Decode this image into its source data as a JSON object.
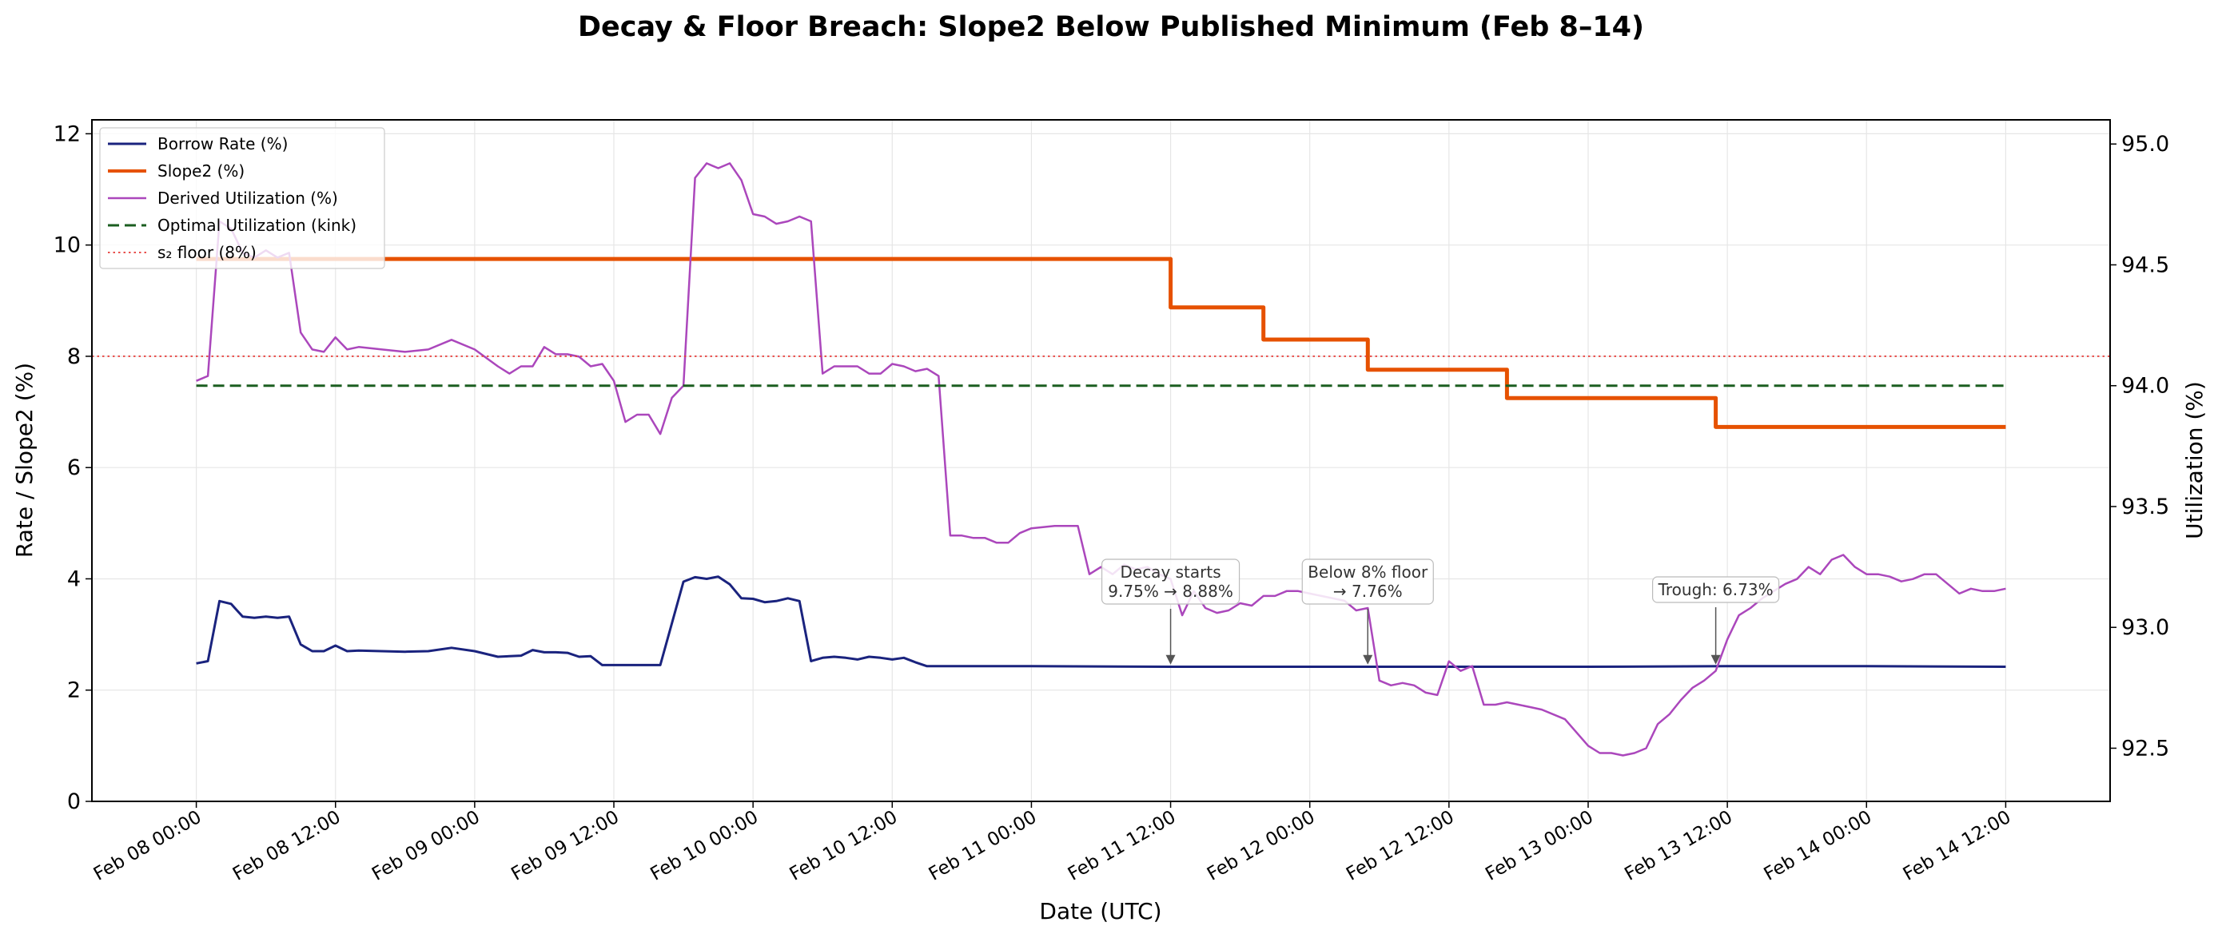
{
  "chart_data": {
    "type": "line",
    "title": "Decay & Floor Breach: Slope2 Below Published Minimum (Feb 8–14)",
    "xlabel": "Date (UTC)",
    "ylabel_left": "Rate / Slope2 (%)",
    "ylabel_right": "Utilization (%)",
    "xlim": [
      "2025-02-07 15:00",
      "2025-02-14 21:00"
    ],
    "ylim_left": [
      0,
      12.25
    ],
    "ylim_right": [
      92.28,
      95.1
    ],
    "xticks": [
      "Feb 08 00:00",
      "Feb 08 12:00",
      "Feb 09 00:00",
      "Feb 09 12:00",
      "Feb 10 00:00",
      "Feb 10 12:00",
      "Feb 11 00:00",
      "Feb 11 12:00",
      "Feb 12 00:00",
      "Feb 12 12:00",
      "Feb 13 00:00",
      "Feb 13 12:00",
      "Feb 14 00:00",
      "Feb 14 12:00"
    ],
    "yticks_left": [
      "0",
      "2",
      "4",
      "6",
      "8",
      "10",
      "12"
    ],
    "yticks_right": [
      "92.5",
      "93.0",
      "93.5",
      "94.0",
      "94.5",
      "95.0"
    ],
    "grid": true,
    "legend_position": "top-left",
    "series": [
      {
        "name": "Borrow Rate (%)",
        "axis": "left",
        "color": "#1a237e",
        "x": [
          "02-08 00:00",
          "02-08 01:00",
          "02-08 02:00",
          "02-08 03:00",
          "02-08 04:00",
          "02-08 05:00",
          "02-08 06:00",
          "02-08 07:00",
          "02-08 08:00",
          "02-08 09:00",
          "02-08 10:00",
          "02-08 11:00",
          "02-08 12:00",
          "02-08 13:00",
          "02-08 14:00",
          "02-08 16:00",
          "02-08 18:00",
          "02-08 20:00",
          "02-08 22:00",
          "02-09 00:00",
          "02-09 02:00",
          "02-09 04:00",
          "02-09 05:00",
          "02-09 06:00",
          "02-09 07:00",
          "02-09 08:00",
          "02-09 09:00",
          "02-09 10:00",
          "02-09 11:00",
          "02-09 12:00",
          "02-09 14:00",
          "02-09 16:00",
          "02-09 18:00",
          "02-09 19:00",
          "02-09 20:00",
          "02-09 21:00",
          "02-09 22:00",
          "02-09 23:00",
          "02-10 00:00",
          "02-10 01:00",
          "02-10 02:00",
          "02-10 03:00",
          "02-10 04:00",
          "02-10 05:00",
          "02-10 06:00",
          "02-10 07:00",
          "02-10 08:00",
          "02-10 09:00",
          "02-10 10:00",
          "02-10 11:00",
          "02-10 12:00",
          "02-10 13:00",
          "02-10 14:00",
          "02-10 15:00",
          "02-10 16:00",
          "02-11 00:00",
          "02-11 12:00",
          "02-12 12:00",
          "02-13 00:00",
          "02-13 12:00",
          "02-14 00:00",
          "02-14 12:00"
        ],
        "y": [
          2.48,
          2.52,
          3.6,
          3.55,
          3.32,
          3.3,
          3.32,
          3.3,
          3.32,
          2.82,
          2.7,
          2.7,
          2.8,
          2.7,
          2.71,
          2.7,
          2.69,
          2.7,
          2.76,
          2.7,
          2.6,
          2.62,
          2.72,
          2.68,
          2.68,
          2.67,
          2.6,
          2.61,
          2.45,
          2.45,
          2.45,
          2.45,
          3.95,
          4.03,
          4.0,
          4.04,
          3.9,
          3.65,
          3.64,
          3.58,
          3.6,
          3.65,
          3.6,
          2.52,
          2.58,
          2.6,
          2.58,
          2.55,
          2.6,
          2.58,
          2.55,
          2.58,
          2.5,
          2.43,
          2.43,
          2.43,
          2.42,
          2.42,
          2.42,
          2.43,
          2.43,
          2.42
        ]
      },
      {
        "name": "Slope2 (%)",
        "axis": "left",
        "color": "#e65100",
        "step": "post",
        "x": [
          "02-08 00:00",
          "02-11 12:00",
          "02-11 20:00",
          "02-12 05:00",
          "02-12 17:00",
          "02-13 11:00",
          "02-14 12:00"
        ],
        "y": [
          9.75,
          8.88,
          8.3,
          7.76,
          7.25,
          6.73,
          6.73
        ]
      },
      {
        "name": "Derived Utilization (%)",
        "axis": "right",
        "color": "#ab47bc",
        "x": [
          "02-08 00:00",
          "02-08 01:00",
          "02-08 02:00",
          "02-08 03:00",
          "02-08 04:00",
          "02-08 05:00",
          "02-08 06:00",
          "02-08 07:00",
          "02-08 08:00",
          "02-08 09:00",
          "02-08 10:00",
          "02-08 11:00",
          "02-08 12:00",
          "02-08 13:00",
          "02-08 14:00",
          "02-08 16:00",
          "02-08 18:00",
          "02-08 20:00",
          "02-08 22:00",
          "02-09 00:00",
          "02-09 02:00",
          "02-09 03:00",
          "02-09 04:00",
          "02-09 05:00",
          "02-09 06:00",
          "02-09 07:00",
          "02-09 08:00",
          "02-09 09:00",
          "02-09 10:00",
          "02-09 11:00",
          "02-09 12:00",
          "02-09 13:00",
          "02-09 14:00",
          "02-09 15:00",
          "02-09 16:00",
          "02-09 17:00",
          "02-09 18:00",
          "02-09 19:00",
          "02-09 20:00",
          "02-09 21:00",
          "02-09 22:00",
          "02-09 23:00",
          "02-10 00:00",
          "02-10 01:00",
          "02-10 02:00",
          "02-10 03:00",
          "02-10 04:00",
          "02-10 05:00",
          "02-10 06:00",
          "02-10 07:00",
          "02-10 08:00",
          "02-10 09:00",
          "02-10 10:00",
          "02-10 11:00",
          "02-10 12:00",
          "02-10 13:00",
          "02-10 14:00",
          "02-10 15:00",
          "02-10 16:00",
          "02-10 17:00",
          "02-10 18:00",
          "02-10 19:00",
          "02-10 20:00",
          "02-10 21:00",
          "02-10 22:00",
          "02-10 23:00",
          "02-11 00:00",
          "02-11 02:00",
          "02-11 04:00",
          "02-11 05:00",
          "02-11 06:00",
          "02-11 07:00",
          "02-11 08:00",
          "02-11 09:00",
          "02-11 10:00",
          "02-11 11:00",
          "02-11 12:00",
          "02-11 13:00",
          "02-11 14:00",
          "02-11 15:00",
          "02-11 16:00",
          "02-11 17:00",
          "02-11 18:00",
          "02-11 19:00",
          "02-11 20:00",
          "02-11 21:00",
          "02-11 22:00",
          "02-11 23:00",
          "02-12 00:00",
          "02-12 01:00",
          "02-12 02:00",
          "02-12 03:00",
          "02-12 04:00",
          "02-12 05:00",
          "02-12 06:00",
          "02-12 07:00",
          "02-12 08:00",
          "02-12 09:00",
          "02-12 10:00",
          "02-12 11:00",
          "02-12 12:00",
          "02-12 13:00",
          "02-12 14:00",
          "02-12 15:00",
          "02-12 16:00",
          "02-12 17:00",
          "02-12 18:00",
          "02-12 19:00",
          "02-12 20:00",
          "02-12 22:00",
          "02-13 00:00",
          "02-13 01:00",
          "02-13 02:00",
          "02-13 03:00",
          "02-13 04:00",
          "02-13 05:00",
          "02-13 06:00",
          "02-13 07:00",
          "02-13 08:00",
          "02-13 09:00",
          "02-13 10:00",
          "02-13 11:00",
          "02-13 12:00",
          "02-13 13:00",
          "02-13 14:00",
          "02-13 15:00",
          "02-13 16:00",
          "02-13 17:00",
          "02-13 18:00",
          "02-13 19:00",
          "02-13 20:00",
          "02-13 21:00",
          "02-13 22:00",
          "02-13 23:00",
          "02-14 00:00",
          "02-14 01:00",
          "02-14 02:00",
          "02-14 03:00",
          "02-14 04:00",
          "02-14 05:00",
          "02-14 06:00",
          "02-14 07:00",
          "02-14 08:00",
          "02-14 09:00",
          "02-14 10:00",
          "02-14 11:00",
          "02-14 12:00"
        ],
        "y": [
          94.02,
          94.04,
          94.68,
          94.65,
          94.55,
          94.53,
          94.56,
          94.53,
          94.55,
          94.22,
          94.15,
          94.14,
          94.2,
          94.15,
          94.16,
          94.15,
          94.14,
          94.15,
          94.19,
          94.15,
          94.08,
          94.05,
          94.08,
          94.08,
          94.16,
          94.13,
          94.13,
          94.12,
          94.08,
          94.09,
          94.02,
          93.85,
          93.88,
          93.88,
          93.8,
          93.95,
          94.0,
          94.86,
          94.92,
          94.9,
          94.92,
          94.85,
          94.71,
          94.7,
          94.67,
          94.68,
          94.7,
          94.68,
          94.05,
          94.08,
          94.08,
          94.08,
          94.05,
          94.05,
          94.09,
          94.08,
          94.06,
          94.07,
          94.04,
          93.38,
          93.38,
          93.37,
          93.37,
          93.35,
          93.35,
          93.39,
          93.41,
          93.42,
          93.42,
          93.22,
          93.25,
          93.22,
          93.26,
          93.24,
          93.25,
          93.22,
          93.2,
          93.05,
          93.15,
          93.08,
          93.06,
          93.07,
          93.1,
          93.09,
          93.13,
          93.13,
          93.15,
          93.15,
          93.14,
          93.13,
          93.12,
          93.11,
          93.07,
          93.08,
          92.78,
          92.76,
          92.77,
          92.76,
          92.73,
          92.72,
          92.86,
          92.82,
          92.84,
          92.68,
          92.68,
          92.69,
          92.68,
          92.67,
          92.66,
          92.62,
          92.51,
          92.48,
          92.48,
          92.47,
          92.48,
          92.5,
          92.6,
          92.64,
          92.7,
          92.75,
          92.78,
          92.82,
          92.95,
          93.05,
          93.08,
          93.12,
          93.15,
          93.18,
          93.2,
          93.25,
          93.22,
          93.28,
          93.3,
          93.25,
          93.22,
          93.22,
          93.21,
          93.19,
          93.2,
          93.22,
          93.22,
          93.18,
          93.14,
          93.16,
          93.15,
          93.15,
          93.16
        ]
      },
      {
        "name": "Optimal Utilization (kink)",
        "axis": "right",
        "color": "#1b5e20",
        "style": "dashed",
        "x": [
          "02-08 00:00",
          "02-14 12:00"
        ],
        "y": [
          94.0,
          94.0
        ]
      },
      {
        "name": "s₂ floor (8%)",
        "axis": "left",
        "color": "#e53935",
        "style": "dotted",
        "x": [
          "02-07 15:00",
          "02-14 21:00"
        ],
        "y": [
          8.0,
          8.0
        ]
      }
    ],
    "annotations": [
      {
        "text_line1": "Decay starts",
        "text_line2": "9.75% → 8.88%",
        "x": "02-11 12:00",
        "y": 2.43
      },
      {
        "text_line1": "Below 8% floor",
        "text_line2": "→ 7.76%",
        "x": "02-12 05:00",
        "y": 2.43
      },
      {
        "text_line1": "Trough: 6.73%",
        "text_line2": "",
        "x": "02-13 11:00",
        "y": 2.43
      }
    ]
  }
}
